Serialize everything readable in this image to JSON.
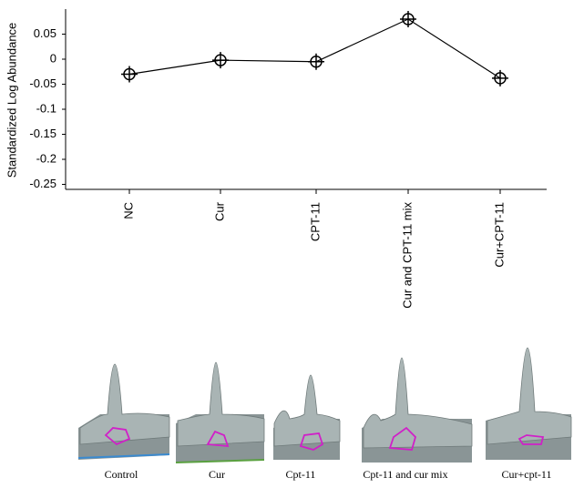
{
  "chart_data": {
    "type": "line",
    "y_label": "Standardized Log Abundance",
    "categories": [
      "NC",
      "Cur",
      "CPT-11",
      "Cur and CPT-11 mix",
      "Cur+CPT-11"
    ],
    "values": [
      -0.03,
      -0.002,
      -0.005,
      0.08,
      -0.038
    ],
    "color": "#000000",
    "ylim": [
      -0.26,
      0.1
    ],
    "yticks": [
      0.05,
      0,
      -0.05,
      -0.1,
      -0.15,
      -0.2,
      -0.25
    ]
  },
  "images": [
    {
      "caption": "Control"
    },
    {
      "caption": "Cur"
    },
    {
      "caption": "Cpt-11"
    },
    {
      "caption": "Cpt-11 and cur mix"
    },
    {
      "caption": "Cur+cpt-11"
    }
  ]
}
